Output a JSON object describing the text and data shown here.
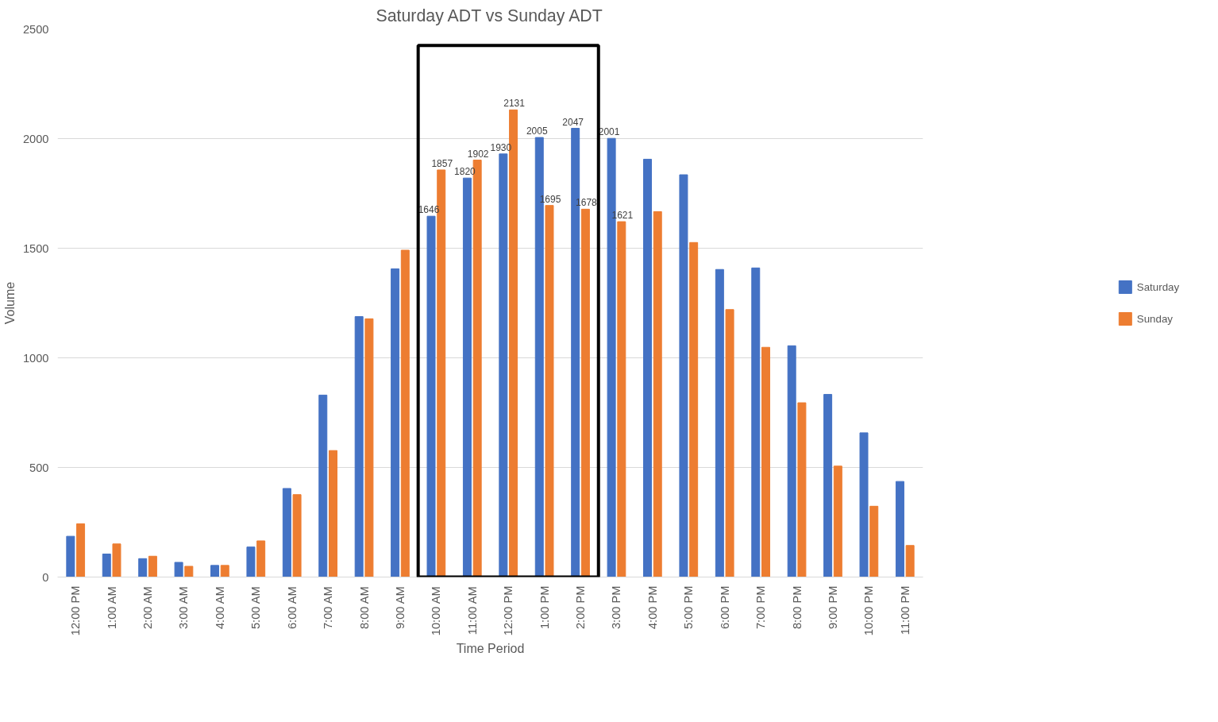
{
  "chart_data": {
    "type": "bar",
    "title": "Saturday ADT vs Sunday ADT",
    "xlabel": "Time Period",
    "ylabel": "Volume",
    "categories": [
      "12:00 PM",
      "1:00 AM",
      "2:00 AM",
      "3:00 AM",
      "4:00 AM",
      "5:00 AM",
      "6:00 AM",
      "7:00 AM",
      "8:00 AM",
      "9:00 AM",
      "10:00 AM",
      "11:00 AM",
      "12:00 PM",
      "1:00 PM",
      "2:00 PM",
      "3:00 PM",
      "4:00 PM",
      "5:00 PM",
      "6:00 PM",
      "7:00 PM",
      "8:00 PM",
      "9:00 PM",
      "10:00 PM",
      "11:00 PM"
    ],
    "series": [
      {
        "name": "Saturday",
        "color": "#4472c4",
        "values": [
          186,
          105,
          84,
          67,
          53,
          137,
          404,
          830,
          1188,
          1406,
          1646,
          1820,
          1930,
          2005,
          2047,
          2001,
          1906,
          1835,
          1403,
          1410,
          1055,
          833,
          658,
          436
        ],
        "value_labels": [
          null,
          null,
          null,
          null,
          null,
          null,
          null,
          null,
          null,
          null,
          "1646",
          "1820",
          "1930",
          "2005",
          "2047",
          "2001",
          null,
          null,
          null,
          null,
          null,
          null,
          null,
          null
        ]
      },
      {
        "name": "Sunday",
        "color": "#ed7d31",
        "values": [
          243,
          151,
          95,
          49,
          53,
          165,
          376,
          577,
          1178,
          1491,
          1857,
          1902,
          2131,
          1695,
          1678,
          1621,
          1667,
          1526,
          1220,
          1048,
          795,
          506,
          323,
          144
        ],
        "value_labels": [
          null,
          null,
          null,
          null,
          null,
          null,
          null,
          null,
          null,
          null,
          "1857",
          "1902",
          "2131",
          "1695",
          "1678",
          "1621",
          null,
          null,
          null,
          null,
          null,
          null,
          null,
          null
        ]
      }
    ],
    "ylim": [
      0,
      2500
    ],
    "yticks": [
      0,
      500,
      1000,
      1500,
      2000,
      2500
    ],
    "grid": "y",
    "legend": "right"
  }
}
